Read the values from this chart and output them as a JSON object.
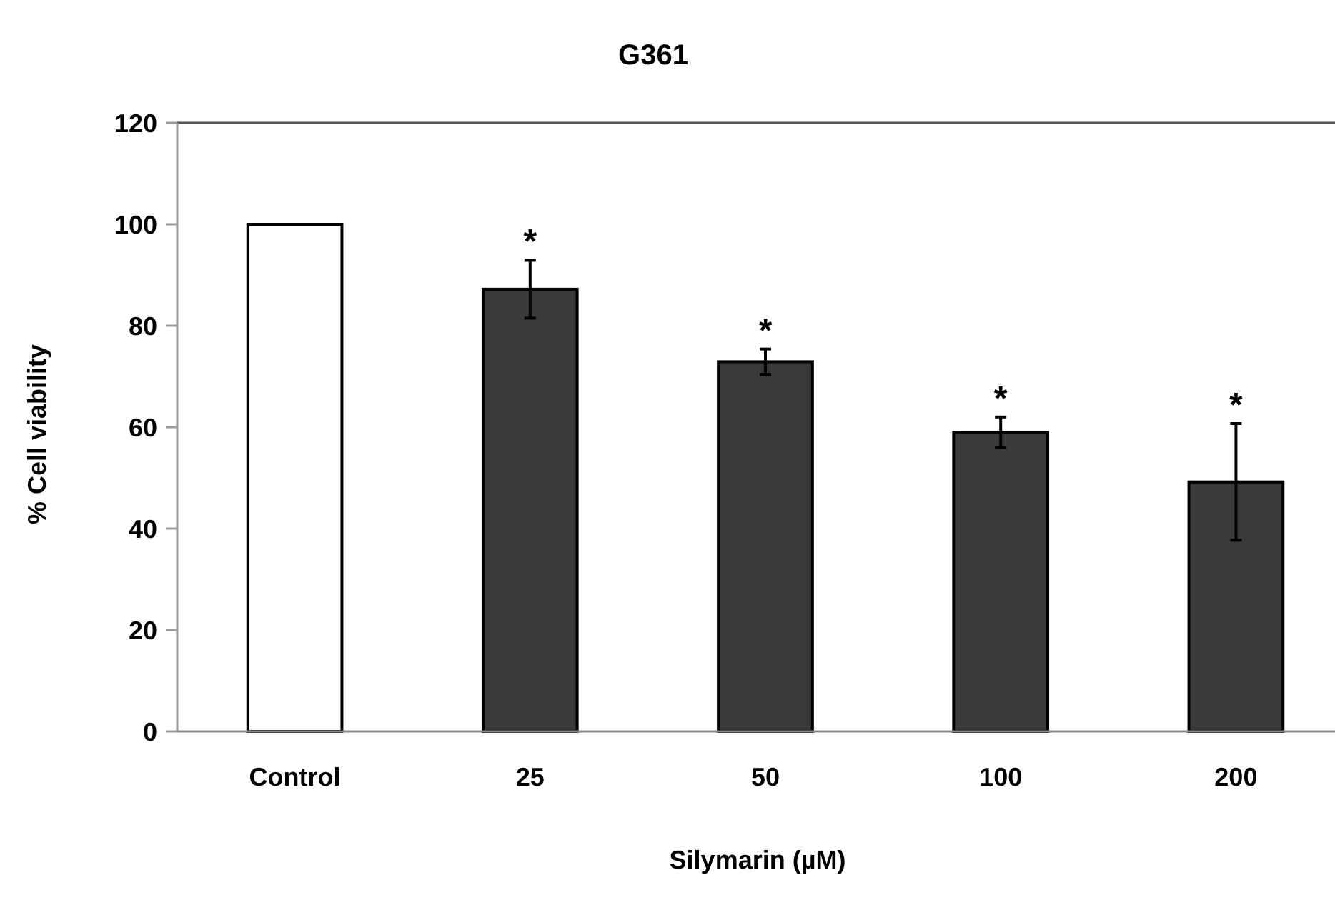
{
  "chart_data": {
    "type": "bar",
    "title": "G361",
    "xlabel": "Silymarin (µM)",
    "ylabel": "% Cell viability",
    "categories": [
      "Control",
      "25",
      "50",
      "100",
      "200"
    ],
    "values": [
      100,
      87.2,
      72.9,
      59.0,
      49.2
    ],
    "errors": [
      null,
      5.7,
      2.5,
      3.0,
      11.5
    ],
    "colors": [
      "#ffffff",
      "#3a3a3a",
      "#3a3a3a",
      "#3a3a3a",
      "#3a3a3a"
    ],
    "ylim": [
      0,
      120
    ],
    "yticks": [
      0,
      20,
      40,
      60,
      80,
      100,
      120
    ],
    "grid": false,
    "annotations": [
      {
        "text": "*",
        "x": "25",
        "y": 92.9
      },
      {
        "text": "*",
        "x": "50",
        "y": 75.4
      },
      {
        "text": "*",
        "x": "100",
        "y": 62
      },
      {
        "text": "*",
        "x": "200",
        "y": 60.7
      }
    ]
  }
}
